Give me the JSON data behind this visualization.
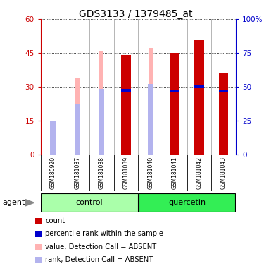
{
  "title": "GDS3133 / 1379485_at",
  "samples": [
    "GSM180920",
    "GSM181037",
    "GSM181038",
    "GSM181039",
    "GSM181040",
    "GSM181041",
    "GSM181042",
    "GSM181043"
  ],
  "groups": [
    "control",
    "control",
    "control",
    "control",
    "quercetin",
    "quercetin",
    "quercetin",
    "quercetin"
  ],
  "count_values": [
    0,
    0,
    0,
    44,
    0,
    45,
    51,
    36
  ],
  "rank_values": [
    0,
    0,
    0,
    28.5,
    0,
    28,
    30,
    28
  ],
  "value_absent": [
    9.5,
    34,
    46,
    0,
    47,
    0,
    0,
    0
  ],
  "rank_absent": [
    14,
    22,
    28.5,
    0,
    30.5,
    0,
    0,
    0
  ],
  "ylim_left": [
    0,
    60
  ],
  "ylim_right": [
    0,
    100
  ],
  "yticks_left": [
    0,
    15,
    30,
    45,
    60
  ],
  "yticks_right": [
    0,
    25,
    50,
    75,
    100
  ],
  "ytick_labels_left": [
    "0",
    "15",
    "30",
    "45",
    "60"
  ],
  "ytick_labels_right": [
    "0",
    "25",
    "50",
    "75",
    "100%"
  ],
  "color_count": "#cc0000",
  "color_rank": "#0000cc",
  "color_value_absent": "#ffb3b3",
  "color_rank_absent": "#b3b3ee",
  "color_bg_control": "#aaffaa",
  "color_bg_quercetin": "#33ee55",
  "color_cell_bg": "#d8d8d8",
  "color_grid": "black",
  "agent_label": "agent",
  "legend_entries": [
    "count",
    "percentile rank within the sample",
    "value, Detection Call = ABSENT",
    "rank, Detection Call = ABSENT"
  ],
  "bar_width": 0.18
}
